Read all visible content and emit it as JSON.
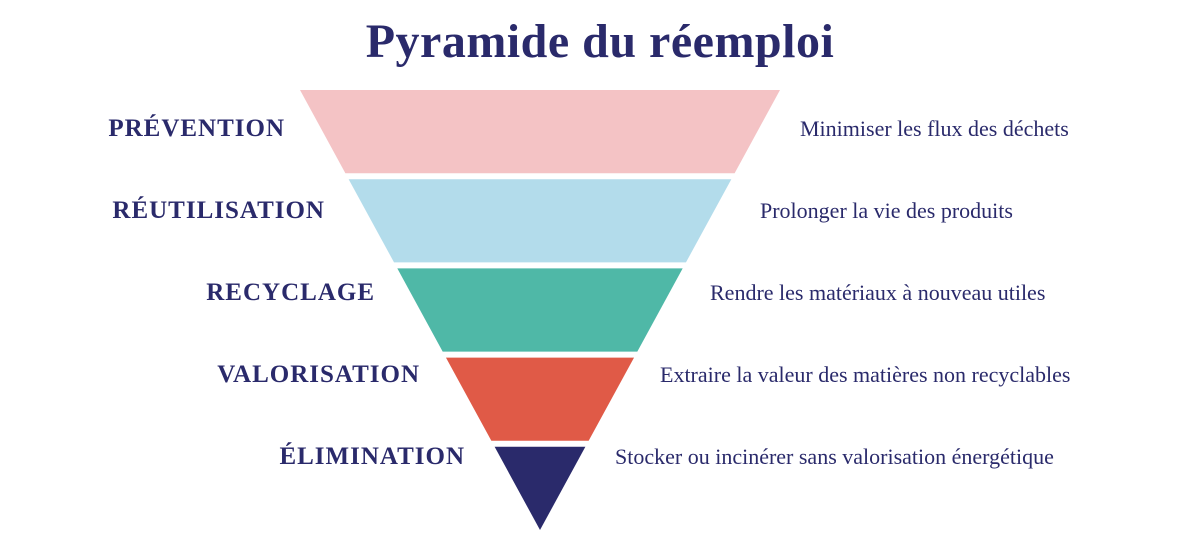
{
  "title": "Pyramide du réemploi",
  "pyramid": {
    "type": "inverted-funnel",
    "background_color": "#ffffff",
    "title_color": "#2a2a6b",
    "title_fontsize": 48,
    "label_color": "#2a2a6b",
    "label_left_fontsize": 25,
    "label_right_fontsize": 22,
    "top_width": 480,
    "total_height": 440,
    "gap": 6,
    "levels": [
      {
        "name": "PRÉVENTION",
        "desc": "Minimiser les flux des déchets",
        "color": "#f4c3c5"
      },
      {
        "name": "RÉUTILISATION",
        "desc": "Prolonger la vie des produits",
        "color": "#b3dceb"
      },
      {
        "name": "RECYCLAGE",
        "desc": "Rendre les matériaux à nouveau utiles",
        "color": "#4fb8a7"
      },
      {
        "name": "VALORISATION",
        "desc": "Extraire la valeur des matières non recyclables",
        "color": "#e05a47"
      },
      {
        "name": "ÉLIMINATION",
        "desc": "Stocker ou incinérer sans valorisation énergétique",
        "color": "#2a2a6b"
      }
    ]
  }
}
